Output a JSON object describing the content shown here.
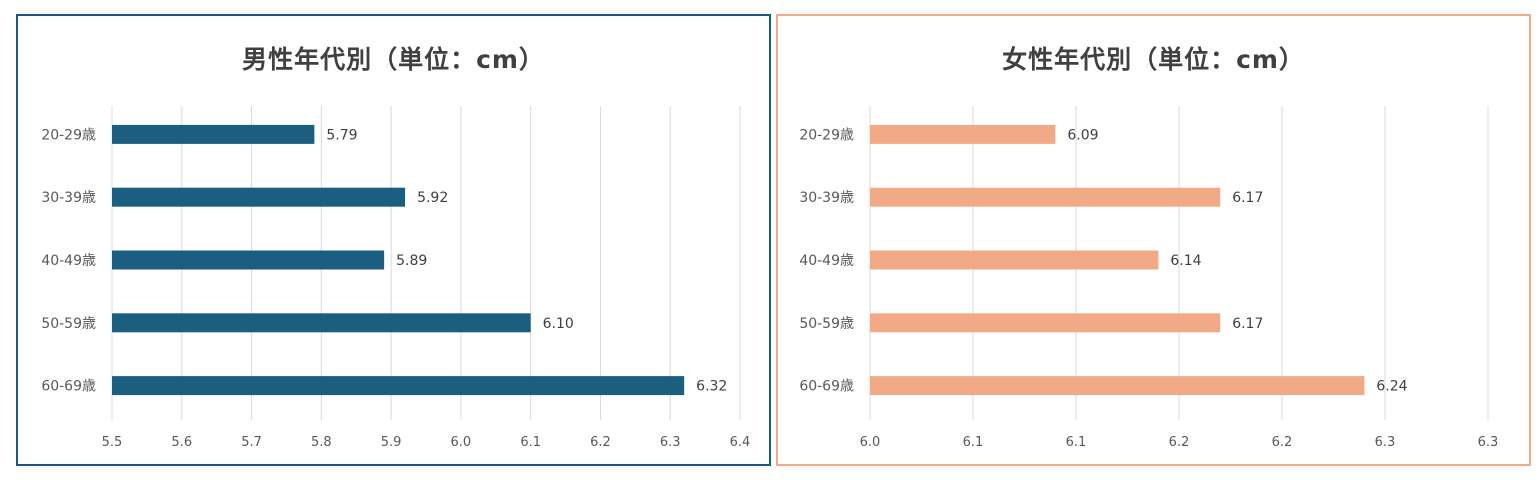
{
  "chart_data": [
    {
      "id": "male",
      "type": "bar",
      "orientation": "horizontal",
      "title": "男性年代別（単位：cm）",
      "categories": [
        "20-29歳",
        "30-39歳",
        "40-49歳",
        "50-59歳",
        "60-69歳"
      ],
      "values": [
        5.79,
        5.92,
        5.89,
        6.1,
        6.32
      ],
      "value_labels": [
        "5.79",
        "5.92",
        "5.89",
        "6.10",
        "6.32"
      ],
      "xlim": [
        5.5,
        6.4
      ],
      "ticks": [
        5.5,
        5.6,
        5.7,
        5.8,
        5.9,
        6.0,
        6.1,
        6.2,
        6.3,
        6.4
      ],
      "tick_labels": [
        "5.5",
        "5.6",
        "5.7",
        "5.8",
        "5.9",
        "6.0",
        "6.1",
        "6.2",
        "6.3",
        "6.4"
      ],
      "grid": true,
      "color": "#1b5e80",
      "border_color": "#1b5a7a"
    },
    {
      "id": "female",
      "type": "bar",
      "orientation": "horizontal",
      "title": "女性年代別（単位：cm）",
      "categories": [
        "20-29歳",
        "30-39歳",
        "40-49歳",
        "50-59歳",
        "60-69歳"
      ],
      "values": [
        6.09,
        6.17,
        6.14,
        6.17,
        6.24
      ],
      "value_labels": [
        "6.09",
        "6.17",
        "6.14",
        "6.17",
        "6.24"
      ],
      "xlim": [
        6.0,
        6.3
      ],
      "ticks": [
        6.0,
        6.05,
        6.1,
        6.15,
        6.2,
        6.25,
        6.3
      ],
      "tick_labels": [
        "6.0",
        "6.1",
        "6.1",
        "6.2",
        "6.2",
        "6.3",
        "6.3"
      ],
      "grid": true,
      "color": "#f2aa86",
      "border_color": "#f0a98a"
    }
  ]
}
